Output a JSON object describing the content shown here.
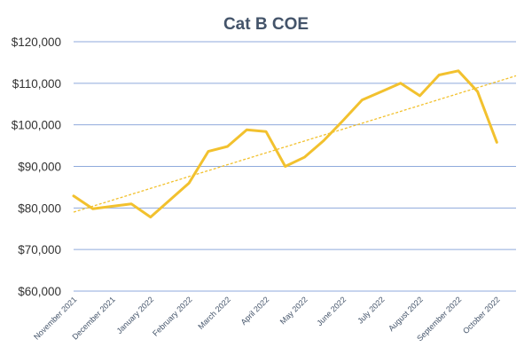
{
  "chart_data": {
    "type": "line",
    "title": "Cat B COE",
    "xlabel": "",
    "ylabel": "",
    "ylim": [
      60000,
      120000
    ],
    "yticks": [
      60000,
      70000,
      80000,
      90000,
      100000,
      110000,
      120000
    ],
    "ytick_labels": [
      "$60,000",
      "$70,000",
      "$80,000",
      "$90,000",
      "$100,000",
      "$110,000",
      "$120,000"
    ],
    "categories": [
      "November 2021",
      "December 2021",
      "January 2022",
      "February 2022",
      "March 2022",
      "April 2022",
      "May 2022",
      "June 2022",
      "July 2022",
      "August 2022",
      "September 2022",
      "October 2022"
    ],
    "x": [
      0,
      0.5,
      1.5,
      2,
      3,
      3.5,
      4,
      4.5,
      5,
      5.5,
      6,
      6.5,
      7,
      7.5,
      8,
      8.5,
      9,
      9.5,
      10,
      10.5,
      11,
      11.5
    ],
    "series": [
      {
        "values": [
          82900,
          79800,
          81000,
          77800,
          86000,
          93600,
          94800,
          98800,
          98400,
          90000,
          92200,
          96200,
          101000,
          106000,
          108000,
          110000,
          107000,
          112000,
          113000,
          108000,
          95800,
          null
        ],
        "color": "#f2c12e",
        "style": "solid"
      }
    ],
    "trendline": {
      "type": "linear",
      "start": 79000,
      "end": 111800,
      "color": "#f2c12e",
      "style": "dashed"
    },
    "grid": true,
    "legend": "none"
  }
}
